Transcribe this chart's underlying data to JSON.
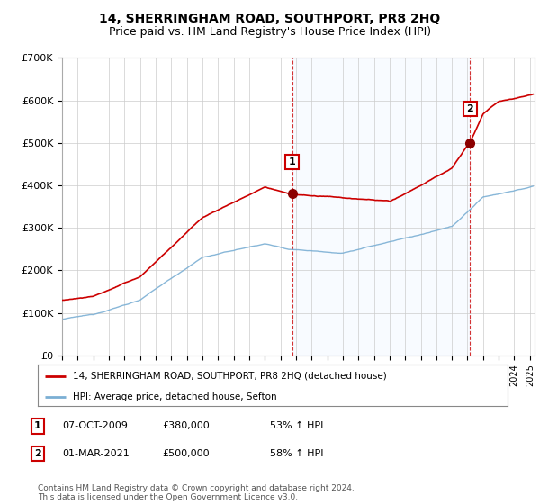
{
  "title": "14, SHERRINGHAM ROAD, SOUTHPORT, PR8 2HQ",
  "subtitle": "Price paid vs. HM Land Registry's House Price Index (HPI)",
  "ylabel_ticks": [
    "£0",
    "£100K",
    "£200K",
    "£300K",
    "£400K",
    "£500K",
    "£600K",
    "£700K"
  ],
  "ylim": [
    0,
    700000
  ],
  "xlim_start": 1995.0,
  "xlim_end": 2025.3,
  "sale1_x": 2009.75,
  "sale1_y": 380000,
  "sale1_label": "1",
  "sale2_x": 2021.17,
  "sale2_y": 500000,
  "sale2_label": "2",
  "red_line_color": "#cc0000",
  "blue_line_color": "#7bafd4",
  "shade_color": "#ddeeff",
  "legend_red_label": "14, SHERRINGHAM ROAD, SOUTHPORT, PR8 2HQ (detached house)",
  "legend_blue_label": "HPI: Average price, detached house, Sefton",
  "table_rows": [
    {
      "num": "1",
      "date": "07-OCT-2009",
      "price": "£380,000",
      "hpi": "53% ↑ HPI"
    },
    {
      "num": "2",
      "date": "01-MAR-2021",
      "price": "£500,000",
      "hpi": "58% ↑ HPI"
    }
  ],
  "footer": "Contains HM Land Registry data © Crown copyright and database right 2024.\nThis data is licensed under the Open Government Licence v3.0.",
  "background_color": "#ffffff",
  "grid_color": "#cccccc",
  "box_color": "#cc0000",
  "title_fontsize": 10,
  "subtitle_fontsize": 9
}
